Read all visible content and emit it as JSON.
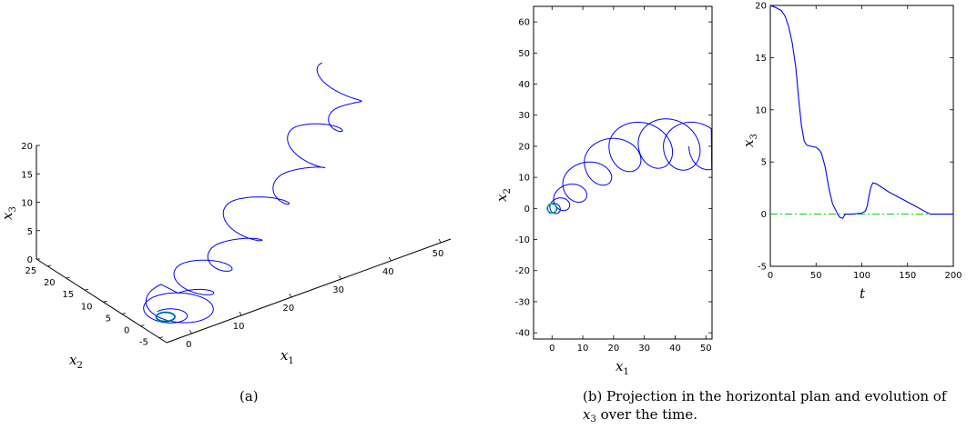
{
  "chart_data": [
    {
      "panel": "a",
      "type": "line",
      "caption": "(a)",
      "axes": [
        {
          "name": "x1",
          "label_main": "x",
          "label_sub": "1",
          "ticks": [
            "0",
            "10",
            "20",
            "30",
            "40",
            "50"
          ],
          "range": [
            -5,
            52
          ]
        },
        {
          "name": "x2",
          "label_main": "x",
          "label_sub": "2",
          "ticks": [
            "-5",
            "0",
            "5",
            "10",
            "15",
            "20",
            "25"
          ],
          "range": [
            -7,
            28
          ]
        },
        {
          "name": "x3",
          "label_main": "x",
          "label_sub": "3",
          "ticks": [
            "0",
            "5",
            "10",
            "15",
            "20"
          ],
          "range": [
            0,
            20
          ]
        }
      ],
      "series": [
        {
          "color": "#0000ff",
          "description": "3D spiral trajectory descending from about (48, 20, 20) and settling onto a small circular limit cycle near the origin"
        },
        {
          "color": "#00cc66",
          "description": "limit cycle near the origin"
        }
      ],
      "grid": false
    },
    {
      "panel": "b-left",
      "type": "line",
      "x_label_main": "x",
      "x_label_sub": "1",
      "y_label_main": "x",
      "y_label_sub": "2",
      "xlim": [
        -6,
        52
      ],
      "ylim": [
        -42,
        65
      ],
      "xticks": [
        "0",
        "10",
        "20",
        "30",
        "40",
        "50"
      ],
      "yticks": [
        "-40",
        "-30",
        "-20",
        "-10",
        "0",
        "10",
        "20",
        "30",
        "40",
        "50",
        "60"
      ],
      "series": [
        {
          "color": "#0000ff",
          "description": "projection of the trajectory in the x1-x2 plane: loops arriving from the right and converging to a circle of radius ~1.5 around the origin"
        },
        {
          "color": "#00cc66",
          "description": "limit cycle near the origin"
        }
      ],
      "grid": false
    },
    {
      "panel": "b-right",
      "type": "line",
      "x_label_main": "t",
      "x_label_sub": "",
      "y_label_main": "x",
      "y_label_sub": "3",
      "xlim": [
        0,
        200
      ],
      "ylim": [
        -5,
        20
      ],
      "xticks": [
        "0",
        "50",
        "100",
        "150",
        "200"
      ],
      "yticks": [
        "-5",
        "0",
        "5",
        "10",
        "15",
        "20"
      ],
      "series": [
        {
          "color": "#0000ff",
          "points": [
            [
              0,
              20
            ],
            [
              6,
              19.8
            ],
            [
              12,
              19.5
            ],
            [
              16,
              19.0
            ],
            [
              20,
              18.0
            ],
            [
              24,
              16.4
            ],
            [
              28,
              14.0
            ],
            [
              31,
              11.0
            ],
            [
              34,
              8.5
            ],
            [
              37,
              7.0
            ],
            [
              40,
              6.6
            ],
            [
              45,
              6.5
            ],
            [
              50,
              6.4
            ],
            [
              53,
              6.2
            ],
            [
              56,
              5.8
            ],
            [
              60,
              4.5
            ],
            [
              64,
              2.5
            ],
            [
              68,
              1.0
            ],
            [
              72,
              0.3
            ],
            [
              74,
              -0.1
            ],
            [
              76,
              -0.3
            ],
            [
              79,
              -0.4
            ],
            [
              82,
              0
            ],
            [
              86,
              0
            ],
            [
              90,
              0
            ],
            [
              100,
              0.1
            ],
            [
              104,
              0.3
            ],
            [
              106,
              0.8
            ],
            [
              108,
              1.8
            ],
            [
              110,
              2.6
            ],
            [
              112,
              3.0
            ],
            [
              116,
              2.9
            ],
            [
              130,
              2.1
            ],
            [
              145,
              1.4
            ],
            [
              160,
              0.7
            ],
            [
              170,
              0.2
            ],
            [
              175,
              0.0
            ],
            [
              200,
              0.0
            ]
          ]
        },
        {
          "color": "#00cc00",
          "style": "dash-dot",
          "points": [
            [
              0,
              0
            ],
            [
              200,
              0
            ]
          ]
        }
      ],
      "grid": false
    }
  ],
  "captions": {
    "a": "(a)",
    "b_line1": "(b) Projection in the horizontal plan and evolution of",
    "b_line2_var": "x",
    "b_line2_sub": "3",
    "b_line2_rest": " over the time."
  }
}
